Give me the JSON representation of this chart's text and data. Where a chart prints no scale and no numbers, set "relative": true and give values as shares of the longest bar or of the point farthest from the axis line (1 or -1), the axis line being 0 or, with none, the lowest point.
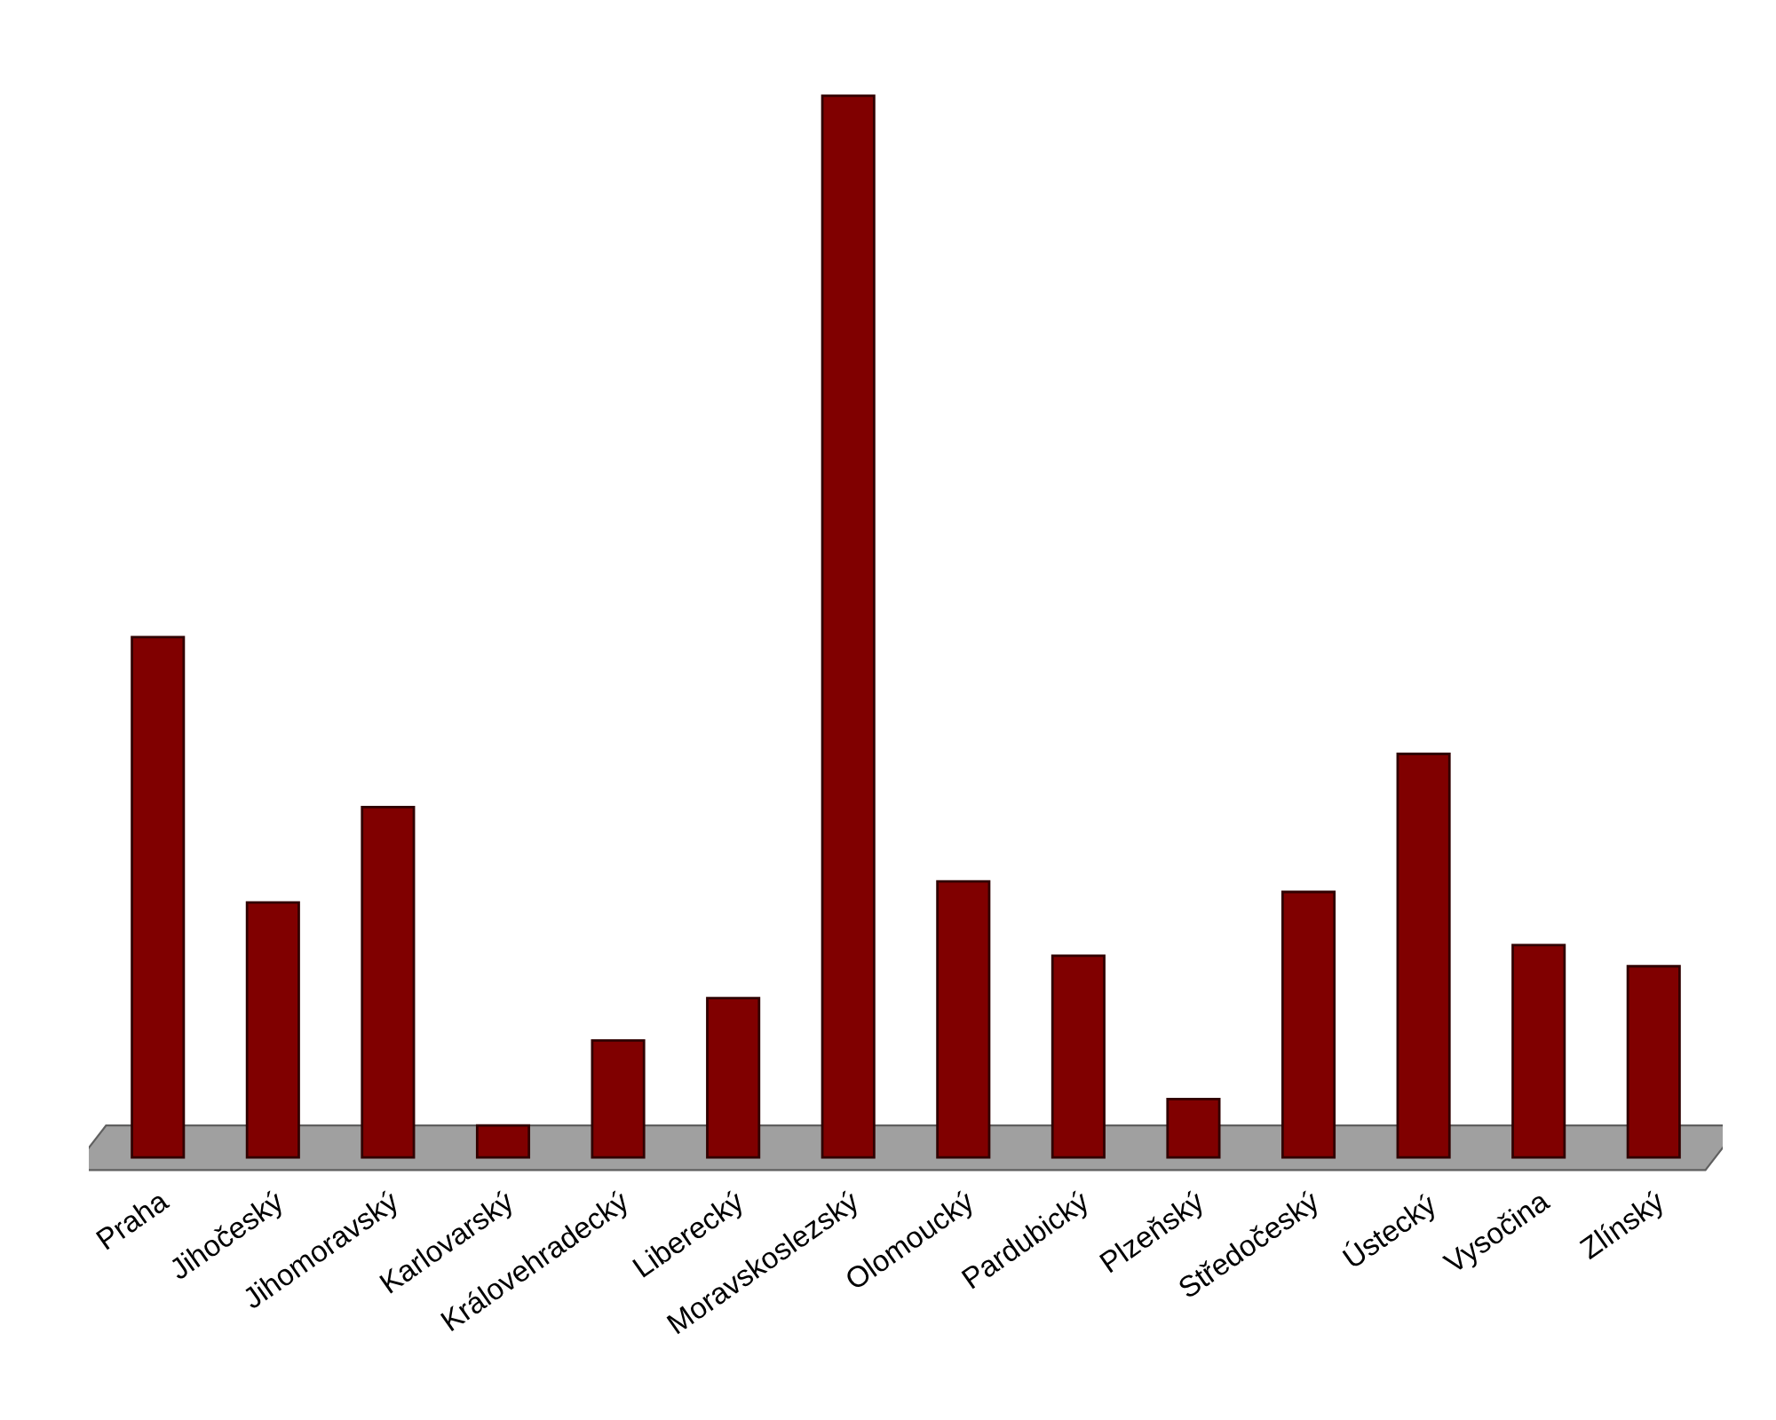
{
  "chart_data": {
    "type": "bar",
    "relative": true,
    "categories": [
      "Praha",
      "Jihočeský",
      "Jihomoravský",
      "Karlovarský",
      "Královehradecký",
      "Liberecký",
      "Moravskoslezský",
      "Olomoucký",
      "Pardubický",
      "Plzeňský",
      "Středočeský",
      "Ústecký",
      "Vysočina",
      "Zlínský"
    ],
    "values": [
      0.49,
      0.24,
      0.33,
      0.03,
      0.11,
      0.15,
      1,
      0.26,
      0.19,
      0.055,
      0.25,
      0.38,
      0.2,
      0.18
    ],
    "color": "#800000"
  }
}
